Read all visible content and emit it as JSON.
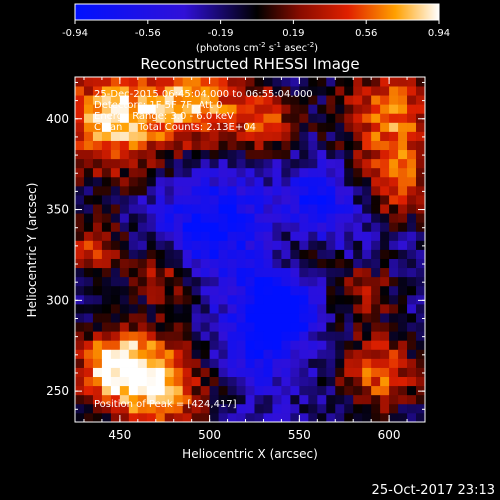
{
  "chart_data": {
    "type": "heatmap",
    "title": "Reconstructed RHESSI Image",
    "xlabel": "Heliocentric X (arcsec)",
    "ylabel": "Heliocentric Y (arcsec)",
    "xlim": [
      425,
      620
    ],
    "ylim": [
      233,
      423
    ],
    "xticks": [
      450,
      500,
      550,
      600
    ],
    "yticks": [
      250,
      300,
      350,
      400
    ],
    "colorbar": {
      "range": [
        -0.94,
        0.94
      ],
      "ticks": [
        "-0.94",
        "-0.56",
        "-0.19",
        "0.19",
        "0.56",
        "0.94"
      ],
      "unit_text": "(photons cm",
      "unit_sup1": "-2",
      "unit_mid": " s",
      "unit_sup2": "-1",
      "unit_mid2": " asec",
      "unit_sup3": "-2",
      "unit_end": ")"
    },
    "annotations": [
      "25-Dec-2015 06:45:04.000 to 06:55:04.000",
      "Detectors: 1F 5F 7F, Att 0",
      "Energy Range: 3.0 - 6.0 keV",
      "Clean     Total Counts: 2.13E+04"
    ],
    "peak_label": "Position of Peak = [424,417]",
    "peak": [
      424,
      417
    ],
    "grid": false,
    "legend": "none"
  },
  "footer": {
    "timestamp": "25-Oct-2017 23:13"
  }
}
